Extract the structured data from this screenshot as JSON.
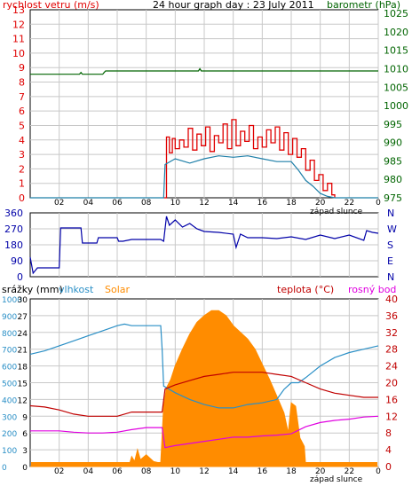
{
  "colors": {
    "wind": "#e00000",
    "gust_line": "#1e7fa8",
    "baro": "#006400",
    "dir": "#0000a8",
    "humid": "#2a8fc6",
    "solar": "#ff8c00",
    "temp": "#c00000",
    "dew": "#e000e0",
    "grid": "#c8c8c8",
    "frame": "#000000"
  },
  "chart_data": [
    {
      "type": "line",
      "title": "24 hour graph day : 23 July 2011",
      "left_label": "rychlost vetru (m/s)",
      "right_label": "barometr (hPa)",
      "x_ticks": [
        "02",
        "04",
        "06",
        "08",
        "10",
        "12",
        "14",
        "16",
        "18",
        "20",
        "22",
        "0"
      ],
      "sunset_label": "západ slunce",
      "left_ticks": [
        "0",
        "1",
        "2",
        "3",
        "4",
        "5",
        "6",
        "7",
        "8",
        "9",
        "10",
        "11",
        "12",
        "13"
      ],
      "right_ticks": [
        "975",
        "980",
        "985",
        "990",
        "995",
        "1000",
        "1005",
        "1010",
        "1015",
        "1020",
        "1025"
      ],
      "ylim_left": [
        0,
        13
      ],
      "ylim_right": [
        975,
        1026
      ],
      "series": [
        {
          "key": "wind_avg",
          "x": [
            0,
            9.2,
            9.3,
            10,
            11,
            12,
            13,
            14,
            15,
            16,
            17,
            18,
            18.5,
            19,
            19.5,
            20,
            20.5,
            21,
            22,
            24
          ],
          "values": [
            0,
            0,
            2.3,
            2.7,
            2.4,
            2.7,
            2.9,
            2.8,
            2.9,
            2.7,
            2.5,
            2.5,
            1.9,
            1.2,
            0.8,
            0.3,
            0.1,
            0,
            0,
            0
          ]
        },
        {
          "key": "gust",
          "x": [
            9.2,
            9.4,
            9.6,
            9.8,
            10,
            10.3,
            10.6,
            10.9,
            11.2,
            11.5,
            11.8,
            12.1,
            12.4,
            12.7,
            13,
            13.3,
            13.6,
            13.9,
            14.2,
            14.5,
            14.8,
            15.1,
            15.4,
            15.7,
            16,
            16.3,
            16.6,
            16.9,
            17.2,
            17.5,
            17.8,
            18.1,
            18.4,
            18.7,
            19,
            19.3,
            19.6,
            19.9,
            20.2,
            20.5,
            20.8,
            21
          ],
          "values": [
            0,
            4.2,
            3.1,
            4.1,
            3.4,
            4.0,
            3.5,
            4.8,
            3.3,
            4.4,
            3.6,
            4.9,
            3.2,
            4.3,
            3.8,
            5.1,
            3.4,
            5.4,
            3.6,
            4.6,
            3.9,
            5.0,
            3.4,
            4.2,
            3.5,
            4.7,
            3.8,
            4.9,
            3.3,
            4.5,
            3.0,
            4.1,
            2.8,
            3.4,
            1.9,
            2.6,
            1.2,
            1.6,
            0.5,
            1.0,
            0.2,
            0
          ]
        },
        {
          "key": "pressure",
          "x": [
            0,
            3.4,
            3.5,
            3.6,
            5,
            5.1,
            5.2,
            11.6,
            11.7,
            11.8,
            24
          ],
          "values": [
            1008.5,
            1008.5,
            1009.0,
            1008.5,
            1008.5,
            1009.0,
            1009.4,
            1009.4,
            1010.0,
            1009.4,
            1009.4
          ]
        }
      ]
    },
    {
      "type": "line",
      "left_ticks": [
        "360",
        "270",
        "180",
        "90",
        "0"
      ],
      "right_ticks": [
        "N",
        "W",
        "S",
        "E",
        "N"
      ],
      "ylim": [
        0,
        360
      ],
      "series": [
        {
          "key": "direction",
          "x": [
            0,
            0.2,
            0.5,
            1,
            2,
            2.1,
            3.5,
            3.6,
            4,
            4.6,
            4.7,
            6,
            6.1,
            6.4,
            7,
            8,
            9,
            9.2,
            9.4,
            9.6,
            10,
            10.5,
            11,
            11.5,
            12,
            13,
            14,
            14.2,
            14.5,
            15,
            16,
            17,
            18,
            19,
            20,
            21,
            22,
            23,
            23.2,
            23.6,
            24
          ],
          "values": [
            110,
            20,
            50,
            50,
            50,
            275,
            275,
            190,
            190,
            190,
            220,
            220,
            200,
            200,
            210,
            210,
            210,
            200,
            340,
            290,
            320,
            280,
            300,
            270,
            255,
            250,
            240,
            165,
            240,
            220,
            220,
            215,
            225,
            210,
            235,
            215,
            235,
            205,
            260,
            250,
            245
          ]
        }
      ]
    },
    {
      "type": "line",
      "rain_label": "srážky (mm)",
      "humid_label": "vlhkost",
      "solar_label": "Solar",
      "temp_label": "teplota (°C)",
      "dew_label": "rosný bod",
      "x_ticks": [
        "02",
        "04",
        "06",
        "08",
        "10",
        "12",
        "14",
        "16",
        "18",
        "20",
        "22",
        "0"
      ],
      "sunset_label": "západ slunce",
      "rain_ticks": [
        "30",
        "27",
        "24",
        "21",
        "18",
        "15",
        "12",
        "9",
        "6",
        "3",
        "0"
      ],
      "humid_ticks": [
        "100",
        "90",
        "80",
        "70",
        "60",
        "50",
        "40",
        "30",
        "20",
        "10",
        "0"
      ],
      "solar_ticks": [
        "1000",
        "900",
        "800",
        "700",
        "600",
        "500",
        "400",
        "300",
        "200",
        "100",
        "0"
      ],
      "temp_ticks": [
        "40",
        "36",
        "32",
        "28",
        "24",
        "20",
        "16",
        "12",
        "8",
        "4",
        "0"
      ],
      "ylim_humid": [
        0,
        100
      ],
      "ylim_temp": [
        0,
        40
      ],
      "series": [
        {
          "key": "humidity",
          "x": [
            0,
            1,
            2,
            3,
            4,
            5,
            6,
            6.5,
            7,
            8,
            9,
            9.1,
            9.2,
            10,
            11,
            12,
            13,
            14,
            15,
            16,
            17,
            17.5,
            18,
            18.5,
            19,
            20,
            21,
            22,
            23,
            24
          ],
          "values": [
            67,
            69,
            72,
            75,
            78,
            81,
            84,
            85,
            84,
            84,
            84,
            70,
            48,
            44,
            40,
            37,
            35,
            35,
            37,
            38,
            40,
            46,
            50,
            50,
            53,
            60,
            65,
            68,
            70,
            72
          ]
        },
        {
          "key": "solar",
          "x": [
            0,
            6.8,
            7,
            7.2,
            7.4,
            7.6,
            8,
            8.5,
            9,
            9.2,
            9.4,
            9.7,
            10,
            10.5,
            11,
            11.5,
            12,
            12.5,
            13,
            13.5,
            14,
            14.5,
            15,
            15.5,
            16,
            16.5,
            17,
            17.5,
            17.8,
            18,
            18.3,
            18.6,
            18.9,
            19,
            24
          ],
          "values": [
            0,
            0,
            60,
            30,
            100,
            40,
            70,
            30,
            20,
            360,
            470,
            520,
            600,
            700,
            790,
            860,
            900,
            930,
            930,
            900,
            840,
            800,
            760,
            700,
            610,
            520,
            420,
            320,
            200,
            380,
            360,
            170,
            120,
            0,
            0
          ]
        },
        {
          "key": "temperature",
          "x": [
            0,
            1,
            2,
            3,
            4,
            5,
            6,
            7,
            8,
            9,
            9.1,
            9.3,
            10,
            11,
            12,
            13,
            14,
            15,
            16,
            17,
            18,
            19,
            20,
            21,
            22,
            23,
            24
          ],
          "values": [
            14.5,
            14.2,
            13.5,
            12.5,
            12.0,
            12.0,
            12.0,
            13.0,
            13.0,
            13.0,
            13.0,
            18.5,
            19.5,
            20.5,
            21.5,
            22.0,
            22.5,
            22.5,
            22.5,
            22.0,
            21.5,
            20.0,
            18.5,
            17.5,
            17.0,
            16.5,
            16.5
          ]
        },
        {
          "key": "dewpoint",
          "x": [
            0,
            1,
            2,
            3,
            4,
            5,
            6,
            7,
            8,
            9,
            9.1,
            9.3,
            10,
            11,
            12,
            13,
            14,
            15,
            16,
            17,
            18,
            19,
            20,
            21,
            22,
            23,
            24
          ],
          "values": [
            8.5,
            8.5,
            8.5,
            8.2,
            8.0,
            8.0,
            8.2,
            8.8,
            9.3,
            9.3,
            9.3,
            4.5,
            5.0,
            5.5,
            6.0,
            6.5,
            7.0,
            7.0,
            7.3,
            7.5,
            7.8,
            9.5,
            10.5,
            11.0,
            11.3,
            11.8,
            12.0
          ]
        }
      ]
    }
  ]
}
